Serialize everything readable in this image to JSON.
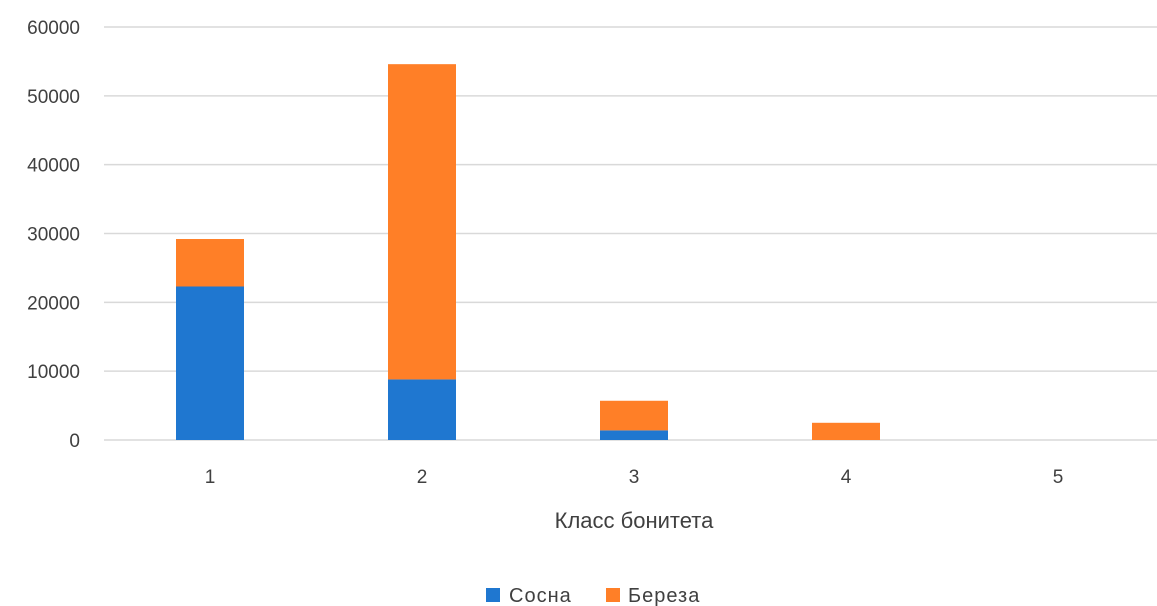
{
  "chart_data": {
    "type": "bar",
    "stacked": true,
    "categories": [
      "1",
      "2",
      "3",
      "4",
      "5"
    ],
    "series": [
      {
        "name": "Сосна",
        "color": "#1f77d0",
        "values": [
          22300,
          8800,
          1400,
          0,
          0
        ]
      },
      {
        "name": "Береза",
        "color": "#ff7f27",
        "values": [
          6900,
          45800,
          4300,
          2500,
          0
        ]
      }
    ],
    "title": "",
    "xlabel": "Класс бонитета",
    "ylabel": "",
    "ylim": [
      0,
      60000
    ],
    "yticks": [
      "0",
      "10000",
      "20000",
      "30000",
      "40000",
      "50000",
      "60000"
    ],
    "grid": true,
    "legend_position": "bottom"
  }
}
